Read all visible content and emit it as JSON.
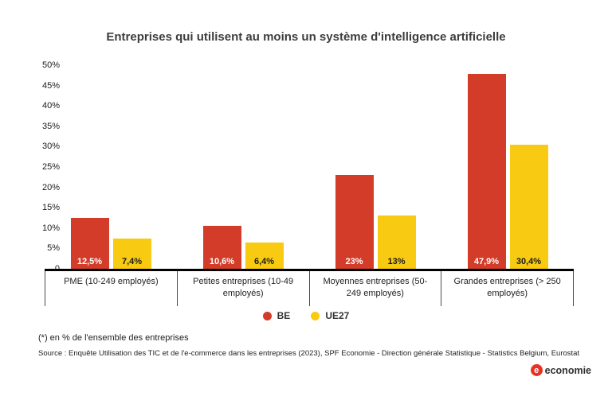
{
  "chart_data": {
    "type": "bar",
    "title": "Entreprises qui utilisent au moins un système d'intelligence artificielle",
    "categories": [
      "PME (10-249 employés)",
      "Petites entreprises (10-49 employés)",
      "Moyennes entreprises (50-249 employés)",
      "Grandes entreprises (> 250 employés)"
    ],
    "series": [
      {
        "name": "BE",
        "color": "#d23c28",
        "label_color": "#ffffff",
        "values": [
          12.5,
          10.6,
          23,
          47.9
        ],
        "labels": [
          "12,5%",
          "10,6%",
          "23%",
          "47,9%"
        ]
      },
      {
        "name": "UE27",
        "color": "#f9ca12",
        "label_color": "#1a1a1a",
        "values": [
          7.4,
          6.4,
          13,
          30.4
        ],
        "labels": [
          "7,4%",
          "6,4%",
          "13%",
          "30,4%"
        ]
      }
    ],
    "ylim": [
      0,
      50
    ],
    "y_ticks": [
      "0",
      "5%",
      "10%",
      "15%",
      "20%",
      "25%",
      "30%",
      "35%",
      "40%",
      "45%",
      "50%"
    ],
    "grid": false,
    "legend_position": "bottom"
  },
  "footnote": "(*) en % de l'ensemble des entreprises",
  "source": "Source : Enquête Utilisation des TIC et de l'e-commerce dans les entreprises (2023), SPF Economie - Direction générale Statistique - Statistics Belgium, Eurostat",
  "logo": {
    "mark": "e",
    "text": "economie"
  }
}
